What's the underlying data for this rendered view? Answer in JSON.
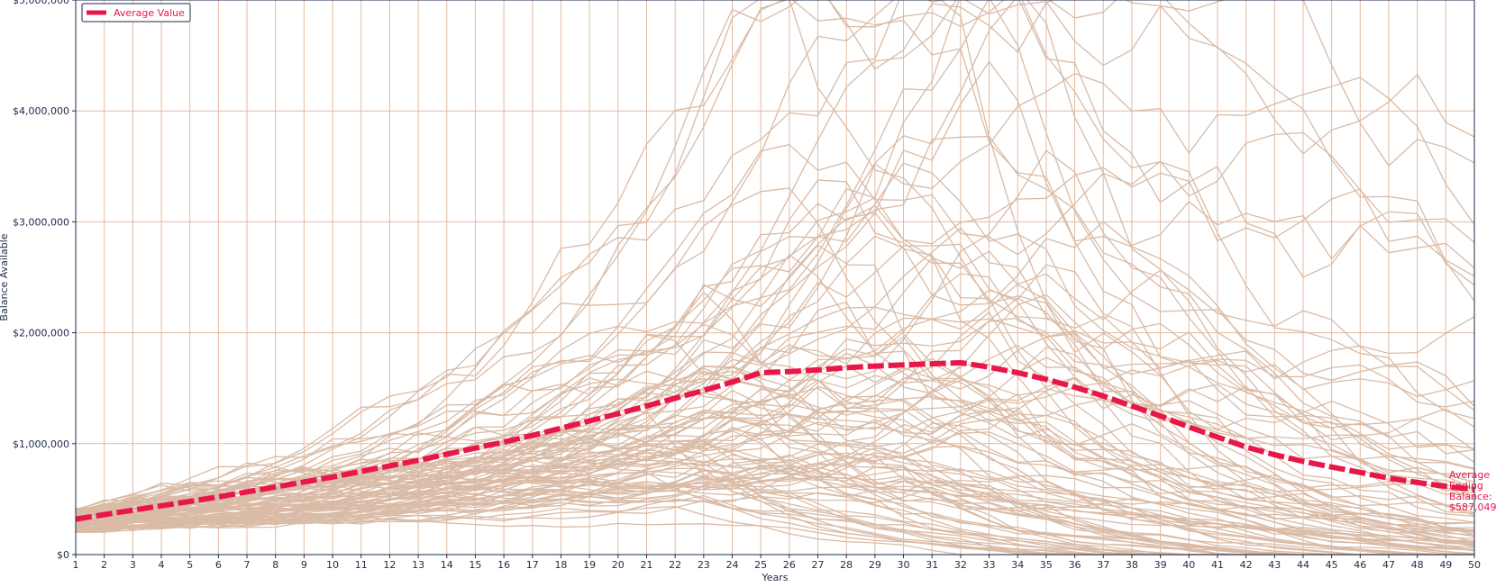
{
  "colors": {
    "background": "#ffffff",
    "grid": "#e2b9a0",
    "simulation_line": "#d9bba6",
    "average_line": "#e8174a",
    "axis": "#1e2a4a",
    "text": "#1e2a4a"
  },
  "chart_data": {
    "type": "line",
    "title": "",
    "xlabel": "Years",
    "ylabel": "Balance Available",
    "xlim": [
      1,
      50
    ],
    "ylim": [
      0,
      5000000
    ],
    "x": [
      1,
      2,
      3,
      4,
      5,
      6,
      7,
      8,
      9,
      10,
      11,
      12,
      13,
      14,
      15,
      16,
      17,
      18,
      19,
      20,
      21,
      22,
      23,
      24,
      25,
      26,
      27,
      28,
      29,
      30,
      31,
      32,
      33,
      34,
      35,
      36,
      37,
      38,
      39,
      40,
      41,
      42,
      43,
      44,
      45,
      46,
      47,
      48,
      49,
      50
    ],
    "x_tick_labels": [
      "1",
      "2",
      "3",
      "4",
      "5",
      "6",
      "7",
      "8",
      "9",
      "10",
      "11",
      "12",
      "13",
      "14",
      "15",
      "16",
      "17",
      "18",
      "19",
      "20",
      "21",
      "22",
      "23",
      "24",
      "25",
      "26",
      "27",
      "28",
      "29",
      "30",
      "31",
      "32",
      "33",
      "34",
      "35",
      "36",
      "37",
      "38",
      "39",
      "40",
      "41",
      "42",
      "43",
      "44",
      "45",
      "46",
      "47",
      "48",
      "49",
      "50"
    ],
    "y_ticks": [
      0,
      1000000,
      2000000,
      3000000,
      4000000,
      5000000
    ],
    "y_tick_labels": [
      "$0",
      "$1,000,000",
      "$2,000,000",
      "$3,000,000",
      "$4,000,000",
      "$5,000,000"
    ],
    "grid": true,
    "legend": {
      "placement": "top-left",
      "entries": [
        "Average Value"
      ]
    },
    "series": [
      {
        "name": "Average Value",
        "style": "dashed",
        "values": [
          320000,
          360000,
          400000,
          440000,
          480000,
          520000,
          565000,
          610000,
          655000,
          700000,
          750000,
          800000,
          850000,
          905000,
          960000,
          1015000,
          1075000,
          1140000,
          1205000,
          1270000,
          1340000,
          1410000,
          1480000,
          1555000,
          1640000,
          1650000,
          1665000,
          1685000,
          1700000,
          1710000,
          1720000,
          1730000,
          1690000,
          1640000,
          1580000,
          1510000,
          1430000,
          1340000,
          1250000,
          1150000,
          1060000,
          970000,
          900000,
          840000,
          790000,
          740000,
          690000,
          650000,
          615000,
          587049
        ]
      }
    ],
    "simulation_paths": {
      "count": 100,
      "description_of_envelope": "Monte Carlo balance paths; each path starts between $200,000 and $420,000 in year 1, spreads widely, peaks up to about $5,100,000 around years 36-37, with many paths depleted to $0 after year 40 and the highest ending near $3,300,000 in year 50."
    },
    "annotation": {
      "lines": [
        "Average",
        "Ending",
        "Balance:",
        "$587,049"
      ],
      "x": 50,
      "y": 587049
    }
  }
}
